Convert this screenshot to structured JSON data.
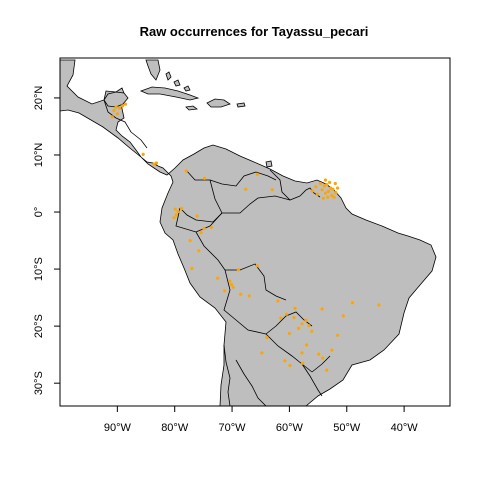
{
  "title": "Raw occurrences for Tayassu_pecari",
  "colors": {
    "land": "#bebebe",
    "points": "#ffa500",
    "background": "#ffffff",
    "lines": "#000000"
  },
  "map_data": {
    "type": "occurrence-map",
    "species": "Tayassu_pecari",
    "lon_range": [
      -100,
      -32
    ],
    "lat_range": [
      -34,
      27
    ],
    "x_ticks": [
      {
        "value": -90,
        "label": "90°W"
      },
      {
        "value": -80,
        "label": "80°W"
      },
      {
        "value": -70,
        "label": "70°W"
      },
      {
        "value": -60,
        "label": "60°W"
      },
      {
        "value": -50,
        "label": "50°W"
      },
      {
        "value": -40,
        "label": "40°W"
      }
    ],
    "y_ticks": [
      {
        "value": 20,
        "label": "20°N"
      },
      {
        "value": 10,
        "label": "10°N"
      },
      {
        "value": 0,
        "label": "0°"
      },
      {
        "value": -10,
        "label": "10°S"
      },
      {
        "value": -20,
        "label": "20°S"
      },
      {
        "value": -30,
        "label": "30°S"
      }
    ],
    "occurrences": [
      [
        -90.2,
        18.4
      ],
      [
        -89.6,
        18.2
      ],
      [
        -90.6,
        17.8
      ],
      [
        -89.1,
        18.6
      ],
      [
        -90.9,
        16.7
      ],
      [
        -90.0,
        17.2
      ],
      [
        -88.6,
        18.9
      ],
      [
        -85.5,
        10.1
      ],
      [
        -83.2,
        8.6
      ],
      [
        -83.6,
        8.4
      ],
      [
        -78.0,
        7.2
      ],
      [
        -65.6,
        6.6
      ],
      [
        -74.8,
        5.9
      ],
      [
        -63.0,
        3.9
      ],
      [
        -67.6,
        4.0
      ],
      [
        -53.0,
        5.2
      ],
      [
        -53.5,
        4.8
      ],
      [
        -52.8,
        4.2
      ],
      [
        -53.9,
        4.6
      ],
      [
        -52.4,
        4.0
      ],
      [
        -53.2,
        3.6
      ],
      [
        -52.0,
        5.0
      ],
      [
        -54.3,
        3.9
      ],
      [
        -53.7,
        3.3
      ],
      [
        -52.6,
        2.9
      ],
      [
        -51.9,
        3.4
      ],
      [
        -54.6,
        5.0
      ],
      [
        -53.3,
        2.6
      ],
      [
        -55.1,
        3.1
      ],
      [
        -52.2,
        2.6
      ],
      [
        -55.4,
        4.4
      ],
      [
        -54.1,
        2.4
      ],
      [
        -51.6,
        4.2
      ],
      [
        -53.7,
        5.6
      ],
      [
        -56.0,
        3.7
      ],
      [
        -79.9,
        0.5
      ],
      [
        -79.4,
        0.1
      ],
      [
        -79.7,
        -0.5
      ],
      [
        -78.8,
        0.6
      ],
      [
        -80.1,
        -1.0
      ],
      [
        -76.1,
        -0.7
      ],
      [
        -74.9,
        -2.9
      ],
      [
        -77.3,
        -5.0
      ],
      [
        -73.6,
        -2.7
      ],
      [
        -75.4,
        -3.6
      ],
      [
        -75.8,
        -6.8
      ],
      [
        -77.0,
        -9.9
      ],
      [
        -72.5,
        -11.6
      ],
      [
        -70.4,
        -12.1
      ],
      [
        -69.8,
        -13.2
      ],
      [
        -70.1,
        -12.7
      ],
      [
        -71.3,
        -13.8
      ],
      [
        -68.5,
        -14.4
      ],
      [
        -68.9,
        -10.1
      ],
      [
        -65.6,
        -9.4
      ],
      [
        -67.0,
        -14.7
      ],
      [
        -62.0,
        -15.6
      ],
      [
        -60.5,
        -17.9
      ],
      [
        -59.2,
        -18.5
      ],
      [
        -57.8,
        -19.6
      ],
      [
        -57.1,
        -19.0
      ],
      [
        -56.6,
        -19.9
      ],
      [
        -58.4,
        -20.4
      ],
      [
        -56.1,
        -20.9
      ],
      [
        -60.0,
        -21.3
      ],
      [
        -61.5,
        -18.6
      ],
      [
        -54.3,
        -17.0
      ],
      [
        -50.6,
        -18.2
      ],
      [
        -49.0,
        -15.9
      ],
      [
        -44.4,
        -16.3
      ],
      [
        -51.6,
        -21.6
      ],
      [
        -52.6,
        -24.2
      ],
      [
        -57.8,
        -24.7
      ],
      [
        -59.9,
        -26.9
      ],
      [
        -57.7,
        -26.5
      ],
      [
        -54.2,
        -25.6
      ],
      [
        -54.9,
        -24.9
      ],
      [
        -60.8,
        -26.1
      ],
      [
        -64.8,
        -24.7
      ],
      [
        -63.9,
        -22.0
      ],
      [
        -53.5,
        -27.7
      ],
      [
        -59.0,
        -16.9
      ],
      [
        -57.0,
        -23.3
      ]
    ]
  }
}
